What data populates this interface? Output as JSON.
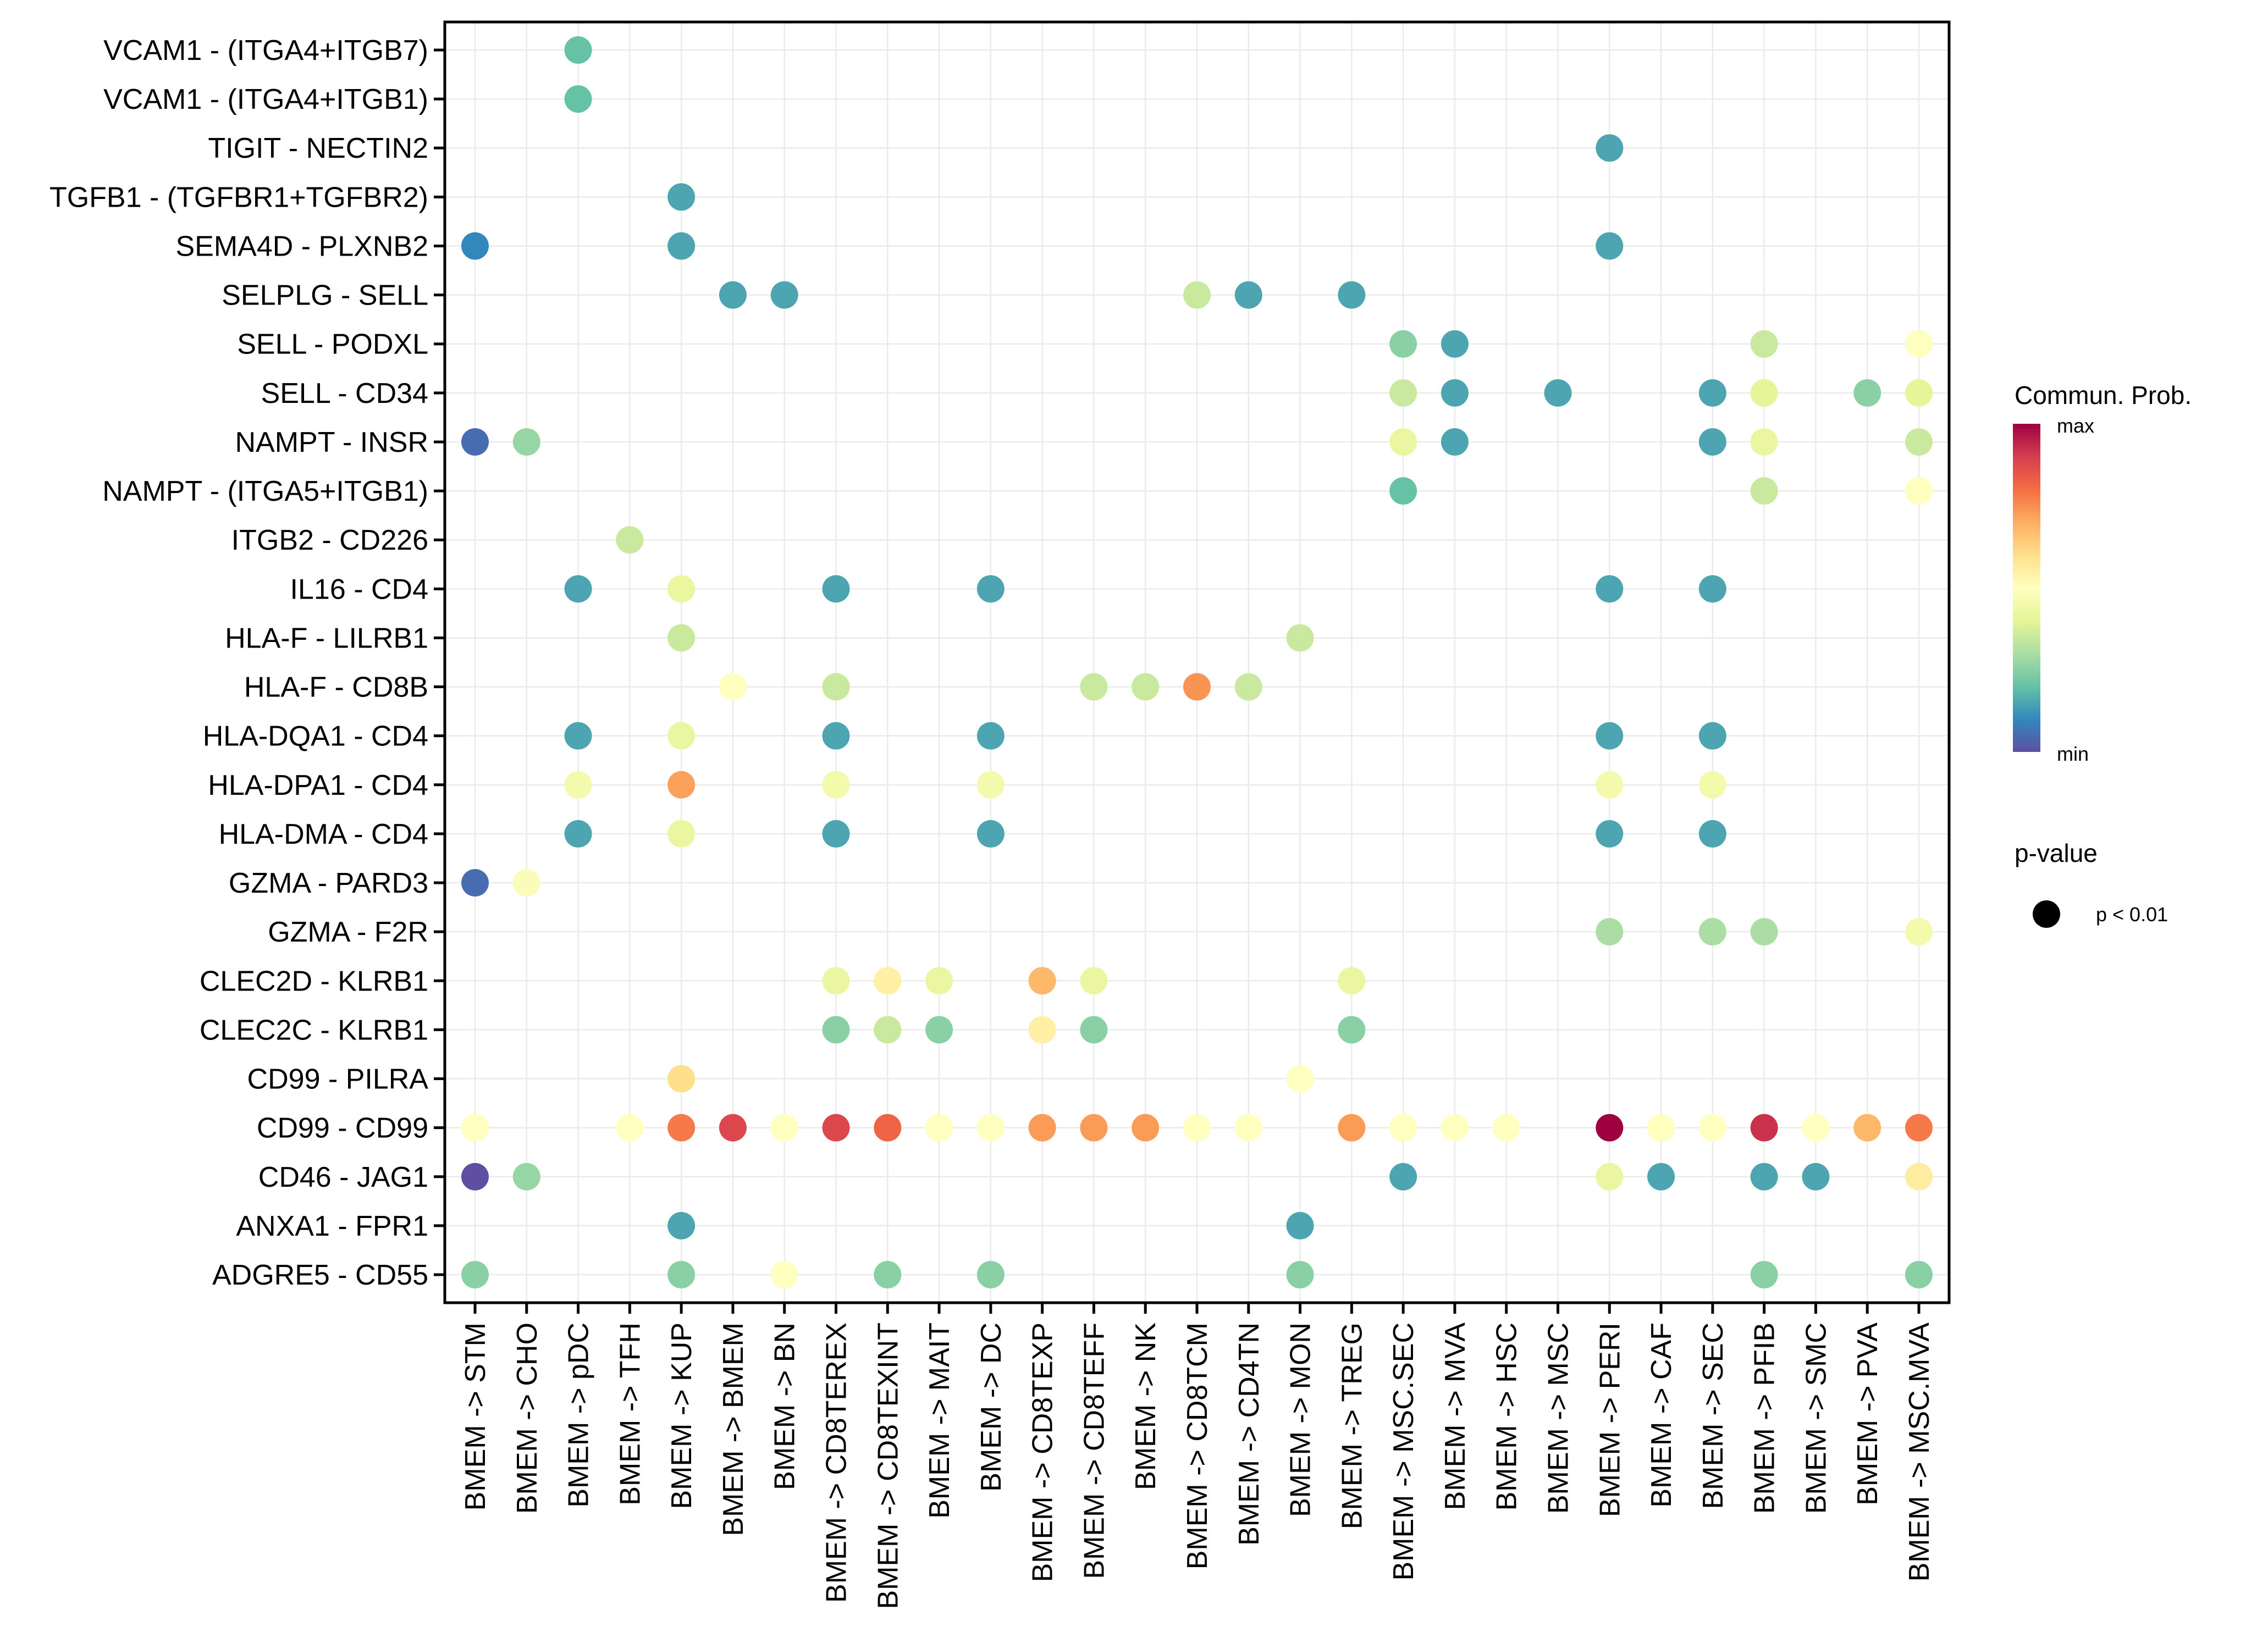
{
  "chart_data": {
    "type": "scatter",
    "subtype": "dot-matrix",
    "title": "",
    "xlabel": "",
    "ylabel": "",
    "grid": true,
    "x_categories": [
      "BMEM -> STM",
      "BMEM -> CHO",
      "BMEM -> pDC",
      "BMEM -> TFH",
      "BMEM -> KUP",
      "BMEM -> BMEM",
      "BMEM -> BN",
      "BMEM -> CD8TEREX",
      "BMEM -> CD8TEXINT",
      "BMEM -> MAIT",
      "BMEM -> DC",
      "BMEM -> CD8TEXP",
      "BMEM -> CD8TEFF",
      "BMEM -> NK",
      "BMEM -> CD8TCM",
      "BMEM -> CD4TN",
      "BMEM -> MON",
      "BMEM -> TREG",
      "BMEM -> MSC.SEC",
      "BMEM -> MVA",
      "BMEM -> HSC",
      "BMEM -> MSC",
      "BMEM -> PERI",
      "BMEM -> CAF",
      "BMEM -> SEC",
      "BMEM -> PFIB",
      "BMEM -> SMC",
      "BMEM -> PVA",
      "BMEM -> MSC.MVA"
    ],
    "y_categories_top_to_bottom": [
      "VCAM1 - (ITGA4+ITGB7)",
      "VCAM1 - (ITGA4+ITGB1)",
      "TIGIT - NECTIN2",
      "TGFB1 - (TGFBR1+TGFBR2)",
      "SEMA4D - PLXNB2",
      "SELPLG - SELL",
      "SELL - PODXL",
      "SELL - CD34",
      "NAMPT - INSR",
      "NAMPT - (ITGA5+ITGB1)",
      "ITGB2 - CD226",
      "IL16 - CD4",
      "HLA-F - LILRB1",
      "HLA-F - CD8B",
      "HLA-DQA1 - CD4",
      "HLA-DPA1 - CD4",
      "HLA-DMA - CD4",
      "GZMA - PARD3",
      "GZMA - F2R",
      "CLEC2D - KLRB1",
      "CLEC2C - KLRB1",
      "CD99 - PILRA",
      "CD99 - CD99",
      "CD46 - JAG1",
      "ANXA1 - FPR1",
      "ADGRE5 - CD55"
    ],
    "value_note": "prob = relative communication probability, 0 = min, 1 = max (estimated from color)",
    "points": [
      {
        "y": "VCAM1 - (ITGA4+ITGB7)",
        "x": "BMEM -> pDC",
        "prob": 0.2,
        "pval": "p < 0.01"
      },
      {
        "y": "VCAM1 - (ITGA4+ITGB1)",
        "x": "BMEM -> pDC",
        "prob": 0.2,
        "pval": "p < 0.01"
      },
      {
        "y": "TIGIT - NECTIN2",
        "x": "BMEM -> PERI",
        "prob": 0.15,
        "pval": "p < 0.01"
      },
      {
        "y": "TGFB1 - (TGFBR1+TGFBR2)",
        "x": "BMEM -> KUP",
        "prob": 0.15,
        "pval": "p < 0.01"
      },
      {
        "y": "SEMA4D - PLXNB2",
        "x": "BMEM -> STM",
        "prob": 0.1,
        "pval": "p < 0.01"
      },
      {
        "y": "SEMA4D - PLXNB2",
        "x": "BMEM -> KUP",
        "prob": 0.15,
        "pval": "p < 0.01"
      },
      {
        "y": "SEMA4D - PLXNB2",
        "x": "BMEM -> PERI",
        "prob": 0.15,
        "pval": "p < 0.01"
      },
      {
        "y": "SELPLG - SELL",
        "x": "BMEM -> BMEM",
        "prob": 0.15,
        "pval": "p < 0.01"
      },
      {
        "y": "SELPLG - SELL",
        "x": "BMEM -> BN",
        "prob": 0.15,
        "pval": "p < 0.01"
      },
      {
        "y": "SELPLG - SELL",
        "x": "BMEM -> CD8TCM",
        "prob": 0.35,
        "pval": "p < 0.01"
      },
      {
        "y": "SELPLG - SELL",
        "x": "BMEM -> CD4TN",
        "prob": 0.15,
        "pval": "p < 0.01"
      },
      {
        "y": "SELPLG - SELL",
        "x": "BMEM -> TREG",
        "prob": 0.15,
        "pval": "p < 0.01"
      },
      {
        "y": "SELL - PODXL",
        "x": "BMEM -> MSC.SEC",
        "prob": 0.25,
        "pval": "p < 0.01"
      },
      {
        "y": "SELL - PODXL",
        "x": "BMEM -> MVA",
        "prob": 0.15,
        "pval": "p < 0.01"
      },
      {
        "y": "SELL - PODXL",
        "x": "BMEM -> PFIB",
        "prob": 0.35,
        "pval": "p < 0.01"
      },
      {
        "y": "SELL - PODXL",
        "x": "BMEM -> MSC.MVA",
        "prob": 0.5,
        "pval": "p < 0.01"
      },
      {
        "y": "SELL - CD34",
        "x": "BMEM -> MSC.SEC",
        "prob": 0.35,
        "pval": "p < 0.01"
      },
      {
        "y": "SELL - CD34",
        "x": "BMEM -> MVA",
        "prob": 0.15,
        "pval": "p < 0.01"
      },
      {
        "y": "SELL - CD34",
        "x": "BMEM -> MSC",
        "prob": 0.15,
        "pval": "p < 0.01"
      },
      {
        "y": "SELL - CD34",
        "x": "BMEM -> SEC",
        "prob": 0.15,
        "pval": "p < 0.01"
      },
      {
        "y": "SELL - CD34",
        "x": "BMEM -> PFIB",
        "prob": 0.4,
        "pval": "p < 0.01"
      },
      {
        "y": "SELL - CD34",
        "x": "BMEM -> PVA",
        "prob": 0.25,
        "pval": "p < 0.01"
      },
      {
        "y": "SELL - CD34",
        "x": "BMEM -> MSC.MVA",
        "prob": 0.4,
        "pval": "p < 0.01"
      },
      {
        "y": "NAMPT - INSR",
        "x": "BMEM -> STM",
        "prob": 0.05,
        "pval": "p < 0.01"
      },
      {
        "y": "NAMPT - INSR",
        "x": "BMEM -> CHO",
        "prob": 0.27,
        "pval": "p < 0.01"
      },
      {
        "y": "NAMPT - INSR",
        "x": "BMEM -> MSC.SEC",
        "prob": 0.42,
        "pval": "p < 0.01"
      },
      {
        "y": "NAMPT - INSR",
        "x": "BMEM -> MVA",
        "prob": 0.15,
        "pval": "p < 0.01"
      },
      {
        "y": "NAMPT - INSR",
        "x": "BMEM -> SEC",
        "prob": 0.15,
        "pval": "p < 0.01"
      },
      {
        "y": "NAMPT - INSR",
        "x": "BMEM -> PFIB",
        "prob": 0.42,
        "pval": "p < 0.01"
      },
      {
        "y": "NAMPT - INSR",
        "x": "BMEM -> MSC.MVA",
        "prob": 0.35,
        "pval": "p < 0.01"
      },
      {
        "y": "NAMPT - (ITGA5+ITGB1)",
        "x": "BMEM -> MSC.SEC",
        "prob": 0.2,
        "pval": "p < 0.01"
      },
      {
        "y": "NAMPT - (ITGA5+ITGB1)",
        "x": "BMEM -> PFIB",
        "prob": 0.35,
        "pval": "p < 0.01"
      },
      {
        "y": "NAMPT - (ITGA5+ITGB1)",
        "x": "BMEM -> MSC.MVA",
        "prob": 0.5,
        "pval": "p < 0.01"
      },
      {
        "y": "ITGB2 - CD226",
        "x": "BMEM -> TFH",
        "prob": 0.35,
        "pval": "p < 0.01"
      },
      {
        "y": "IL16 - CD4",
        "x": "BMEM -> pDC",
        "prob": 0.15,
        "pval": "p < 0.01"
      },
      {
        "y": "IL16 - CD4",
        "x": "BMEM -> KUP",
        "prob": 0.42,
        "pval": "p < 0.01"
      },
      {
        "y": "IL16 - CD4",
        "x": "BMEM -> CD8TEREX",
        "prob": 0.15,
        "pval": "p < 0.01"
      },
      {
        "y": "IL16 - CD4",
        "x": "BMEM -> DC",
        "prob": 0.15,
        "pval": "p < 0.01"
      },
      {
        "y": "IL16 - CD4",
        "x": "BMEM -> PERI",
        "prob": 0.15,
        "pval": "p < 0.01"
      },
      {
        "y": "IL16 - CD4",
        "x": "BMEM -> SEC",
        "prob": 0.15,
        "pval": "p < 0.01"
      },
      {
        "y": "HLA-F - LILRB1",
        "x": "BMEM -> KUP",
        "prob": 0.35,
        "pval": "p < 0.01"
      },
      {
        "y": "HLA-F - LILRB1",
        "x": "BMEM -> MON",
        "prob": 0.35,
        "pval": "p < 0.01"
      },
      {
        "y": "HLA-F - CD8B",
        "x": "BMEM -> BMEM",
        "prob": 0.5,
        "pval": "p < 0.01"
      },
      {
        "y": "HLA-F - CD8B",
        "x": "BMEM -> CD8TEREX",
        "prob": 0.35,
        "pval": "p < 0.01"
      },
      {
        "y": "HLA-F - CD8B",
        "x": "BMEM -> CD8TEFF",
        "prob": 0.35,
        "pval": "p < 0.01"
      },
      {
        "y": "HLA-F - CD8B",
        "x": "BMEM -> NK",
        "prob": 0.35,
        "pval": "p < 0.01"
      },
      {
        "y": "HLA-F - CD8B",
        "x": "BMEM -> CD8TCM",
        "prob": 0.74,
        "pval": "p < 0.01"
      },
      {
        "y": "HLA-F - CD8B",
        "x": "BMEM -> CD4TN",
        "prob": 0.35,
        "pval": "p < 0.01"
      },
      {
        "y": "HLA-DQA1 - CD4",
        "x": "BMEM -> pDC",
        "prob": 0.15,
        "pval": "p < 0.01"
      },
      {
        "y": "HLA-DQA1 - CD4",
        "x": "BMEM -> KUP",
        "prob": 0.42,
        "pval": "p < 0.01"
      },
      {
        "y": "HLA-DQA1 - CD4",
        "x": "BMEM -> CD8TEREX",
        "prob": 0.15,
        "pval": "p < 0.01"
      },
      {
        "y": "HLA-DQA1 - CD4",
        "x": "BMEM -> DC",
        "prob": 0.15,
        "pval": "p < 0.01"
      },
      {
        "y": "HLA-DQA1 - CD4",
        "x": "BMEM -> PERI",
        "prob": 0.15,
        "pval": "p < 0.01"
      },
      {
        "y": "HLA-DQA1 - CD4",
        "x": "BMEM -> SEC",
        "prob": 0.15,
        "pval": "p < 0.01"
      },
      {
        "y": "HLA-DPA1 - CD4",
        "x": "BMEM -> pDC",
        "prob": 0.45,
        "pval": "p < 0.01"
      },
      {
        "y": "HLA-DPA1 - CD4",
        "x": "BMEM -> KUP",
        "prob": 0.72,
        "pval": "p < 0.01"
      },
      {
        "y": "HLA-DPA1 - CD4",
        "x": "BMEM -> CD8TEREX",
        "prob": 0.45,
        "pval": "p < 0.01"
      },
      {
        "y": "HLA-DPA1 - CD4",
        "x": "BMEM -> DC",
        "prob": 0.45,
        "pval": "p < 0.01"
      },
      {
        "y": "HLA-DPA1 - CD4",
        "x": "BMEM -> PERI",
        "prob": 0.45,
        "pval": "p < 0.01"
      },
      {
        "y": "HLA-DPA1 - CD4",
        "x": "BMEM -> SEC",
        "prob": 0.45,
        "pval": "p < 0.01"
      },
      {
        "y": "HLA-DMA - CD4",
        "x": "BMEM -> pDC",
        "prob": 0.15,
        "pval": "p < 0.01"
      },
      {
        "y": "HLA-DMA - CD4",
        "x": "BMEM -> KUP",
        "prob": 0.42,
        "pval": "p < 0.01"
      },
      {
        "y": "HLA-DMA - CD4",
        "x": "BMEM -> CD8TEREX",
        "prob": 0.15,
        "pval": "p < 0.01"
      },
      {
        "y": "HLA-DMA - CD4",
        "x": "BMEM -> DC",
        "prob": 0.15,
        "pval": "p < 0.01"
      },
      {
        "y": "HLA-DMA - CD4",
        "x": "BMEM -> PERI",
        "prob": 0.15,
        "pval": "p < 0.01"
      },
      {
        "y": "HLA-DMA - CD4",
        "x": "BMEM -> SEC",
        "prob": 0.15,
        "pval": "p < 0.01"
      },
      {
        "y": "GZMA - PARD3",
        "x": "BMEM -> STM",
        "prob": 0.05,
        "pval": "p < 0.01"
      },
      {
        "y": "GZMA - PARD3",
        "x": "BMEM -> CHO",
        "prob": 0.48,
        "pval": "p < 0.01"
      },
      {
        "y": "GZMA - F2R",
        "x": "BMEM -> PERI",
        "prob": 0.3,
        "pval": "p < 0.01"
      },
      {
        "y": "GZMA - F2R",
        "x": "BMEM -> SEC",
        "prob": 0.3,
        "pval": "p < 0.01"
      },
      {
        "y": "GZMA - F2R",
        "x": "BMEM -> PFIB",
        "prob": 0.3,
        "pval": "p < 0.01"
      },
      {
        "y": "GZMA - F2R",
        "x": "BMEM -> MSC.MVA",
        "prob": 0.45,
        "pval": "p < 0.01"
      },
      {
        "y": "CLEC2D - KLRB1",
        "x": "BMEM -> CD8TEREX",
        "prob": 0.42,
        "pval": "p < 0.01"
      },
      {
        "y": "CLEC2D - KLRB1",
        "x": "BMEM -> CD8TEXINT",
        "prob": 0.55,
        "pval": "p < 0.01"
      },
      {
        "y": "CLEC2D - KLRB1",
        "x": "BMEM -> MAIT",
        "prob": 0.42,
        "pval": "p < 0.01"
      },
      {
        "y": "CLEC2D - KLRB1",
        "x": "BMEM -> CD8TEXP",
        "prob": 0.68,
        "pval": "p < 0.01"
      },
      {
        "y": "CLEC2D - KLRB1",
        "x": "BMEM -> CD8TEFF",
        "prob": 0.42,
        "pval": "p < 0.01"
      },
      {
        "y": "CLEC2D - KLRB1",
        "x": "BMEM -> TREG",
        "prob": 0.42,
        "pval": "p < 0.01"
      },
      {
        "y": "CLEC2C - KLRB1",
        "x": "BMEM -> CD8TEREX",
        "prob": 0.25,
        "pval": "p < 0.01"
      },
      {
        "y": "CLEC2C - KLRB1",
        "x": "BMEM -> CD8TEXINT",
        "prob": 0.35,
        "pval": "p < 0.01"
      },
      {
        "y": "CLEC2C - KLRB1",
        "x": "BMEM -> MAIT",
        "prob": 0.25,
        "pval": "p < 0.01"
      },
      {
        "y": "CLEC2C - KLRB1",
        "x": "BMEM -> CD8TEXP",
        "prob": 0.55,
        "pval": "p < 0.01"
      },
      {
        "y": "CLEC2C - KLRB1",
        "x": "BMEM -> CD8TEFF",
        "prob": 0.25,
        "pval": "p < 0.01"
      },
      {
        "y": "CLEC2C - KLRB1",
        "x": "BMEM -> TREG",
        "prob": 0.25,
        "pval": "p < 0.01"
      },
      {
        "y": "CD99 - PILRA",
        "x": "BMEM -> KUP",
        "prob": 0.6,
        "pval": "p < 0.01"
      },
      {
        "y": "CD99 - PILRA",
        "x": "BMEM -> MON",
        "prob": 0.5,
        "pval": "p < 0.01"
      },
      {
        "y": "CD99 - CD99",
        "x": "BMEM -> STM",
        "prob": 0.5,
        "pval": "p < 0.01"
      },
      {
        "y": "CD99 - CD99",
        "x": "BMEM -> TFH",
        "prob": 0.5,
        "pval": "p < 0.01"
      },
      {
        "y": "CD99 - CD99",
        "x": "BMEM -> KUP",
        "prob": 0.78,
        "pval": "p < 0.01"
      },
      {
        "y": "CD99 - CD99",
        "x": "BMEM -> BMEM",
        "prob": 0.88,
        "pval": "p < 0.01"
      },
      {
        "y": "CD99 - CD99",
        "x": "BMEM -> BN",
        "prob": 0.5,
        "pval": "p < 0.01"
      },
      {
        "y": "CD99 - CD99",
        "x": "BMEM -> CD8TEREX",
        "prob": 0.88,
        "pval": "p < 0.01"
      },
      {
        "y": "CD99 - CD99",
        "x": "BMEM -> CD8TEXINT",
        "prob": 0.82,
        "pval": "p < 0.01"
      },
      {
        "y": "CD99 - CD99",
        "x": "BMEM -> MAIT",
        "prob": 0.5,
        "pval": "p < 0.01"
      },
      {
        "y": "CD99 - CD99",
        "x": "BMEM -> DC",
        "prob": 0.5,
        "pval": "p < 0.01"
      },
      {
        "y": "CD99 - CD99",
        "x": "BMEM -> CD8TEXP",
        "prob": 0.73,
        "pval": "p < 0.01"
      },
      {
        "y": "CD99 - CD99",
        "x": "BMEM -> CD8TEFF",
        "prob": 0.73,
        "pval": "p < 0.01"
      },
      {
        "y": "CD99 - CD99",
        "x": "BMEM -> NK",
        "prob": 0.73,
        "pval": "p < 0.01"
      },
      {
        "y": "CD99 - CD99",
        "x": "BMEM -> CD8TCM",
        "prob": 0.5,
        "pval": "p < 0.01"
      },
      {
        "y": "CD99 - CD99",
        "x": "BMEM -> CD4TN",
        "prob": 0.5,
        "pval": "p < 0.01"
      },
      {
        "y": "CD99 - CD99",
        "x": "BMEM -> TREG",
        "prob": 0.73,
        "pval": "p < 0.01"
      },
      {
        "y": "CD99 - CD99",
        "x": "BMEM -> MSC.SEC",
        "prob": 0.5,
        "pval": "p < 0.01"
      },
      {
        "y": "CD99 - CD99",
        "x": "BMEM -> MVA",
        "prob": 0.5,
        "pval": "p < 0.01"
      },
      {
        "y": "CD99 - CD99",
        "x": "BMEM -> HSC",
        "prob": 0.5,
        "pval": "p < 0.01"
      },
      {
        "y": "CD99 - CD99",
        "x": "BMEM -> PERI",
        "prob": 1.0,
        "pval": "p < 0.01"
      },
      {
        "y": "CD99 - CD99",
        "x": "BMEM -> CAF",
        "prob": 0.5,
        "pval": "p < 0.01"
      },
      {
        "y": "CD99 - CD99",
        "x": "BMEM -> SEC",
        "prob": 0.5,
        "pval": "p < 0.01"
      },
      {
        "y": "CD99 - CD99",
        "x": "BMEM -> PFIB",
        "prob": 0.92,
        "pval": "p < 0.01"
      },
      {
        "y": "CD99 - CD99",
        "x": "BMEM -> SMC",
        "prob": 0.5,
        "pval": "p < 0.01"
      },
      {
        "y": "CD99 - CD99",
        "x": "BMEM -> PVA",
        "prob": 0.68,
        "pval": "p < 0.01"
      },
      {
        "y": "CD99 - CD99",
        "x": "BMEM -> MSC.MVA",
        "prob": 0.78,
        "pval": "p < 0.01"
      },
      {
        "y": "CD46 - JAG1",
        "x": "BMEM -> STM",
        "prob": 0.0,
        "pval": "p < 0.01"
      },
      {
        "y": "CD46 - JAG1",
        "x": "BMEM -> CHO",
        "prob": 0.27,
        "pval": "p < 0.01"
      },
      {
        "y": "CD46 - JAG1",
        "x": "BMEM -> MSC.SEC",
        "prob": 0.15,
        "pval": "p < 0.01"
      },
      {
        "y": "CD46 - JAG1",
        "x": "BMEM -> PERI",
        "prob": 0.42,
        "pval": "p < 0.01"
      },
      {
        "y": "CD46 - JAG1",
        "x": "BMEM -> CAF",
        "prob": 0.15,
        "pval": "p < 0.01"
      },
      {
        "y": "CD46 - JAG1",
        "x": "BMEM -> PFIB",
        "prob": 0.15,
        "pval": "p < 0.01"
      },
      {
        "y": "CD46 - JAG1",
        "x": "BMEM -> SMC",
        "prob": 0.15,
        "pval": "p < 0.01"
      },
      {
        "y": "CD46 - JAG1",
        "x": "BMEM -> MSC.MVA",
        "prob": 0.56,
        "pval": "p < 0.01"
      },
      {
        "y": "ANXA1 - FPR1",
        "x": "BMEM -> KUP",
        "prob": 0.15,
        "pval": "p < 0.01"
      },
      {
        "y": "ANXA1 - FPR1",
        "x": "BMEM -> MON",
        "prob": 0.15,
        "pval": "p < 0.01"
      },
      {
        "y": "ADGRE5 - CD55",
        "x": "BMEM -> STM",
        "prob": 0.25,
        "pval": "p < 0.01"
      },
      {
        "y": "ADGRE5 - CD55",
        "x": "BMEM -> KUP",
        "prob": 0.25,
        "pval": "p < 0.01"
      },
      {
        "y": "ADGRE5 - CD55",
        "x": "BMEM -> BN",
        "prob": 0.5,
        "pval": "p < 0.01"
      },
      {
        "y": "ADGRE5 - CD55",
        "x": "BMEM -> CD8TEXINT",
        "prob": 0.25,
        "pval": "p < 0.01"
      },
      {
        "y": "ADGRE5 - CD55",
        "x": "BMEM -> DC",
        "prob": 0.25,
        "pval": "p < 0.01"
      },
      {
        "y": "ADGRE5 - CD55",
        "x": "BMEM -> MON",
        "prob": 0.25,
        "pval": "p < 0.01"
      },
      {
        "y": "ADGRE5 - CD55",
        "x": "BMEM -> PFIB",
        "prob": 0.25,
        "pval": "p < 0.01"
      },
      {
        "y": "ADGRE5 - CD55",
        "x": "BMEM -> MSC.MVA",
        "prob": 0.25,
        "pval": "p < 0.01"
      }
    ],
    "color_scale": {
      "name": "Spectral (reversed)",
      "stops": [
        "#5E4FA2",
        "#3288BD",
        "#66C2A5",
        "#ABDDA4",
        "#E6F598",
        "#FFFFBF",
        "#FEE08B",
        "#FDAE61",
        "#F46D43",
        "#D53E4F",
        "#9E0142"
      ]
    },
    "legend": {
      "placement": "right",
      "color_title": "Commun. Prob.",
      "color_max_label": "max",
      "color_min_label": "min",
      "size_title": "p-value",
      "size_entries": [
        "p < 0.01"
      ]
    }
  }
}
